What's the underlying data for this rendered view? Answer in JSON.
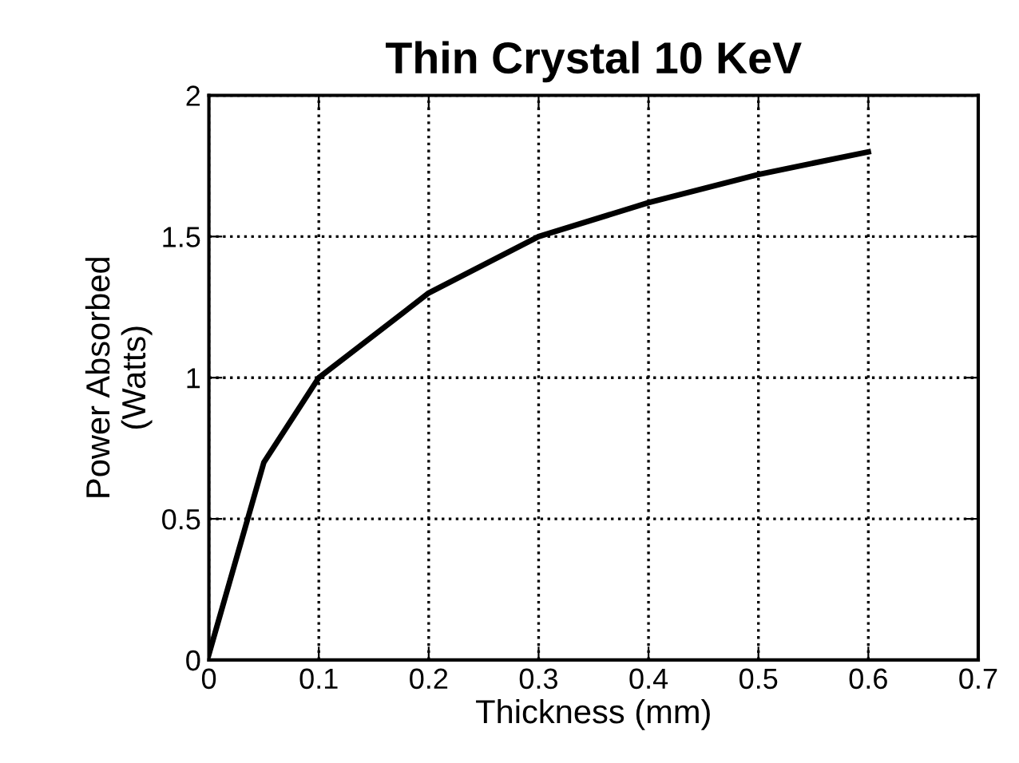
{
  "chart_data": {
    "type": "line",
    "title": "Thin Crystal 10 KeV",
    "xlabel": "Thickness (mm)",
    "ylabel": "Power Absorbed\n(Watts)",
    "x": [
      0,
      0.05,
      0.1,
      0.2,
      0.3,
      0.4,
      0.5,
      0.6
    ],
    "series": [
      {
        "color": "#000000",
        "values": [
          0.02,
          0.7,
          1.0,
          1.3,
          1.5,
          1.62,
          1.72,
          1.8
        ]
      }
    ],
    "xlim": [
      0,
      0.7
    ],
    "xticks": [
      0,
      0.1,
      0.2,
      0.3,
      0.4,
      0.5,
      0.6,
      0.7
    ],
    "ylim": [
      0,
      2
    ],
    "yticks": [
      0,
      0.5,
      1,
      1.5,
      2
    ],
    "grid": true,
    "legend": false,
    "marker": "none",
    "line_style": "solid"
  }
}
